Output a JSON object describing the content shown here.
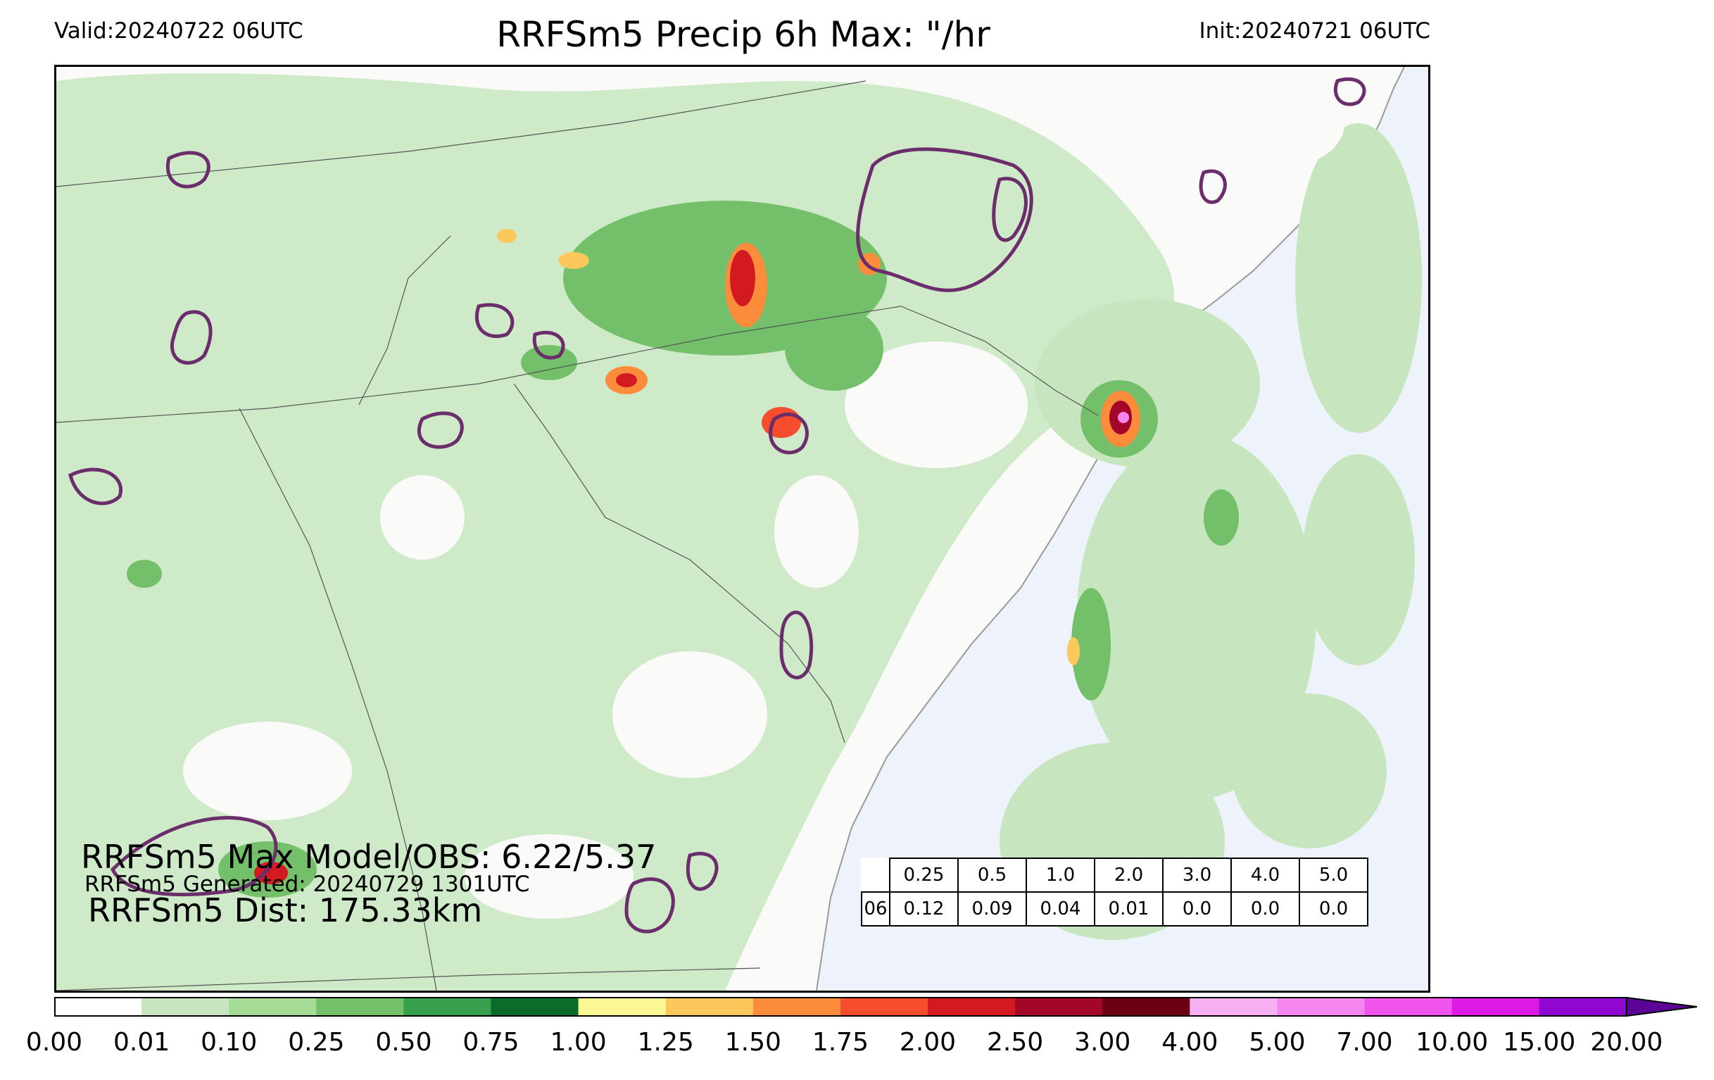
{
  "header": {
    "valid": "Valid:20240722 06UTC",
    "title": "RRFSm5 Precip 6h Max: \"/hr",
    "init": "Init:20240721 06UTC"
  },
  "stats": {
    "max_line": "RRFSm5 Max Model/OBS: 6.22/5.37",
    "generated_line": "RRFSm5 Generated: 20240729 1301UTC",
    "dist_line": "RRFSm5 Dist: 175.33km"
  },
  "score_table": {
    "thresholds": [
      "0.25",
      "0.5",
      "1.0",
      "2.0",
      "3.0",
      "4.0",
      "5.0"
    ],
    "hour": "06",
    "values": [
      "0.12",
      "0.09",
      "0.04",
      "0.01",
      "0.0",
      "0.0",
      "0.0"
    ]
  },
  "colorbar": {
    "labels": [
      "0.00",
      "0.01",
      "0.10",
      "0.25",
      "0.50",
      "0.75",
      "1.00",
      "1.25",
      "1.50",
      "1.75",
      "2.00",
      "2.50",
      "3.00",
      "4.00",
      "5.00",
      "7.00",
      "10.00",
      "15.00",
      "20.00"
    ],
    "colors": [
      "#ffffff",
      "#c7e6c0",
      "#a4dc95",
      "#74c06a",
      "#36a04d",
      "#0b6b2a",
      "#fcf896",
      "#fcc85c",
      "#fa8c3c",
      "#f54d2d",
      "#d31a20",
      "#a4062a",
      "#6c0012",
      "#f8b0f4",
      "#f486ee",
      "#f054ea",
      "#de1ae6",
      "#9006d2"
    ],
    "extend_color": "#5c0496"
  },
  "map": {
    "ocean_color": "#eef3fb",
    "land_color": "#fafaf8",
    "obs_contour_color": "#6b2d6b"
  }
}
